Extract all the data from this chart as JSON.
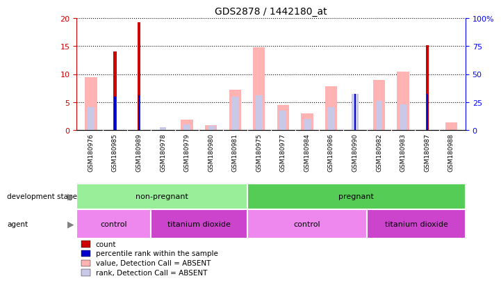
{
  "title": "GDS2878 / 1442180_at",
  "samples": [
    "GSM180976",
    "GSM180985",
    "GSM180989",
    "GSM180978",
    "GSM180979",
    "GSM180980",
    "GSM180981",
    "GSM180975",
    "GSM180977",
    "GSM180984",
    "GSM180986",
    "GSM180990",
    "GSM180982",
    "GSM180983",
    "GSM180987",
    "GSM180988"
  ],
  "count": [
    0,
    14,
    19.3,
    0,
    0,
    0,
    0,
    0,
    0,
    0,
    0,
    0,
    0,
    0,
    15.2,
    0
  ],
  "percentile_rank": [
    0,
    6.0,
    6.2,
    0,
    0,
    0,
    0,
    0,
    0,
    0,
    0,
    6.5,
    0,
    0,
    6.5,
    0
  ],
  "value_absent": [
    9.5,
    0,
    0,
    0,
    1.9,
    0.9,
    7.2,
    14.8,
    4.5,
    3.0,
    7.9,
    0,
    9.0,
    10.5,
    0,
    1.4
  ],
  "rank_absent": [
    4.1,
    0,
    0,
    0.6,
    1.1,
    0.8,
    6.0,
    6.2,
    3.5,
    2.0,
    4.2,
    6.5,
    5.3,
    4.7,
    0,
    0
  ],
  "ylim_left": [
    0,
    20
  ],
  "ylim_right": [
    0,
    100
  ],
  "yticks_left": [
    0,
    5,
    10,
    15,
    20
  ],
  "yticks_right": [
    0,
    25,
    50,
    75,
    100
  ],
  "ytick_labels_right": [
    "0",
    "25",
    "50",
    "75",
    "100%"
  ],
  "color_count": "#cc0000",
  "color_percentile": "#0000cc",
  "color_value_absent": "#ffb3b3",
  "color_rank_absent": "#c8c8e8",
  "background_color": "#ffffff",
  "xticklabel_bg": "#d0d0d0",
  "development_stage_color_light": "#99ee99",
  "development_stage_color_dark": "#55cc55",
  "agent_color_light": "#ee88ee",
  "agent_color_dark": "#cc44cc",
  "development_stage_labels": [
    "non-pregnant",
    "pregnant"
  ],
  "development_stage_spans": [
    0,
    6,
    7,
    15
  ],
  "agent_labels": [
    "control",
    "titanium dioxide",
    "control",
    "titanium dioxide"
  ],
  "agent_spans": [
    0,
    2,
    3,
    6,
    7,
    11,
    12,
    15
  ],
  "legend_items": [
    "count",
    "percentile rank within the sample",
    "value, Detection Call = ABSENT",
    "rank, Detection Call = ABSENT"
  ],
  "legend_colors": [
    "#cc0000",
    "#0000cc",
    "#ffb3b3",
    "#c8c8e8"
  ]
}
